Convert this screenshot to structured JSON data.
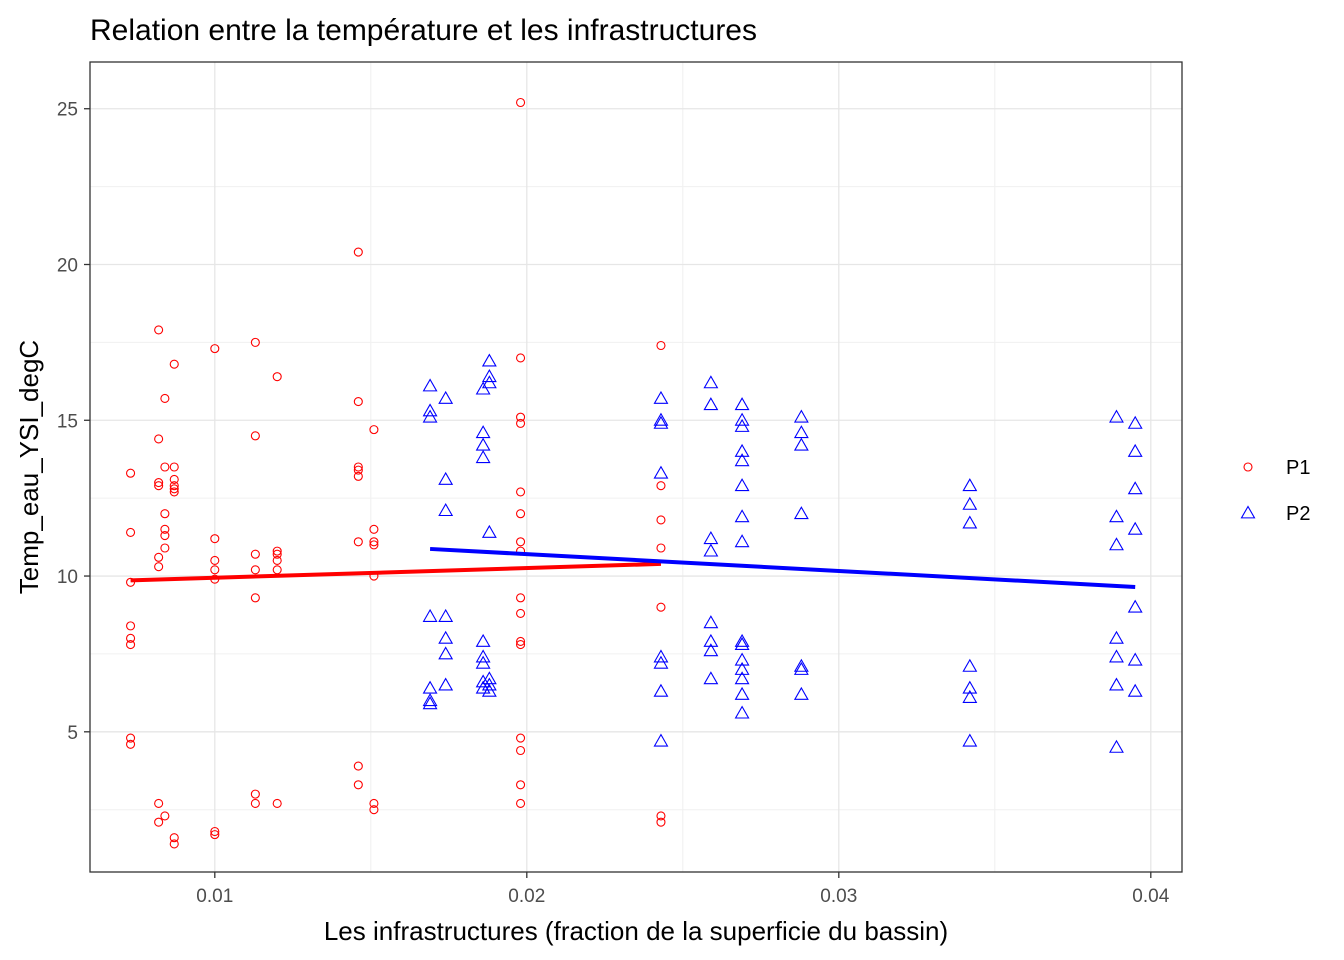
{
  "chart_data": {
    "type": "scatter",
    "title": "Relation entre la température et les infrastructures",
    "xlabel": "Les infrastructures (fraction de la superficie du bassin)",
    "ylabel": "Temp_eau_YSI_degC",
    "xlim": [
      0.006,
      0.041
    ],
    "ylim": [
      0.5,
      26.5
    ],
    "xticks": [
      0.01,
      0.02,
      0.03,
      0.04
    ],
    "xtick_labels": [
      "0.01",
      "0.02",
      "0.03",
      "0.04"
    ],
    "yticks": [
      5,
      10,
      15,
      20,
      25
    ],
    "ytick_labels": [
      "5",
      "10",
      "15",
      "20",
      "25"
    ],
    "grid": true,
    "legend_position": "right",
    "series": [
      {
        "name": "P1",
        "color": "#ff0000",
        "marker": "circle",
        "points": [
          [
            0.0073,
            13.3
          ],
          [
            0.0073,
            11.4
          ],
          [
            0.0073,
            9.8
          ],
          [
            0.0073,
            8.4
          ],
          [
            0.0073,
            8.0
          ],
          [
            0.0073,
            7.8
          ],
          [
            0.0073,
            4.8
          ],
          [
            0.0073,
            4.6
          ],
          [
            0.0082,
            17.9
          ],
          [
            0.0082,
            14.4
          ],
          [
            0.0082,
            13.0
          ],
          [
            0.0082,
            12.9
          ],
          [
            0.0082,
            10.6
          ],
          [
            0.0082,
            10.3
          ],
          [
            0.0082,
            2.7
          ],
          [
            0.0082,
            2.1
          ],
          [
            0.0084,
            15.7
          ],
          [
            0.0084,
            13.5
          ],
          [
            0.0084,
            12.0
          ],
          [
            0.0084,
            11.5
          ],
          [
            0.0084,
            11.3
          ],
          [
            0.0084,
            10.9
          ],
          [
            0.0084,
            2.3
          ],
          [
            0.0087,
            16.8
          ],
          [
            0.0087,
            13.5
          ],
          [
            0.0087,
            13.1
          ],
          [
            0.0087,
            12.9
          ],
          [
            0.0087,
            12.8
          ],
          [
            0.0087,
            12.7
          ],
          [
            0.0087,
            1.6
          ],
          [
            0.0087,
            1.4
          ],
          [
            0.01,
            17.3
          ],
          [
            0.01,
            11.2
          ],
          [
            0.01,
            10.5
          ],
          [
            0.01,
            10.2
          ],
          [
            0.01,
            9.9
          ],
          [
            0.01,
            1.8
          ],
          [
            0.01,
            1.7
          ],
          [
            0.0113,
            17.5
          ],
          [
            0.0113,
            14.5
          ],
          [
            0.0113,
            10.7
          ],
          [
            0.0113,
            10.2
          ],
          [
            0.0113,
            9.3
          ],
          [
            0.0113,
            3.0
          ],
          [
            0.0113,
            2.7
          ],
          [
            0.012,
            16.4
          ],
          [
            0.012,
            10.8
          ],
          [
            0.012,
            10.7
          ],
          [
            0.012,
            10.5
          ],
          [
            0.012,
            10.2
          ],
          [
            0.012,
            2.7
          ],
          [
            0.0146,
            20.4
          ],
          [
            0.0146,
            15.6
          ],
          [
            0.0146,
            13.5
          ],
          [
            0.0146,
            13.4
          ],
          [
            0.0146,
            13.2
          ],
          [
            0.0146,
            11.1
          ],
          [
            0.0146,
            3.9
          ],
          [
            0.0146,
            3.3
          ],
          [
            0.0151,
            14.7
          ],
          [
            0.0151,
            11.5
          ],
          [
            0.0151,
            11.1
          ],
          [
            0.0151,
            11.0
          ],
          [
            0.0151,
            10.0
          ],
          [
            0.0151,
            2.7
          ],
          [
            0.0151,
            2.5
          ],
          [
            0.0198,
            25.2
          ],
          [
            0.0198,
            17.0
          ],
          [
            0.0198,
            15.1
          ],
          [
            0.0198,
            14.9
          ],
          [
            0.0198,
            12.7
          ],
          [
            0.0198,
            12.0
          ],
          [
            0.0198,
            11.1
          ],
          [
            0.0198,
            10.8
          ],
          [
            0.0198,
            9.3
          ],
          [
            0.0198,
            8.8
          ],
          [
            0.0198,
            7.9
          ],
          [
            0.0198,
            7.8
          ],
          [
            0.0198,
            4.8
          ],
          [
            0.0198,
            4.4
          ],
          [
            0.0198,
            3.3
          ],
          [
            0.0198,
            2.7
          ],
          [
            0.0243,
            17.4
          ],
          [
            0.0243,
            12.9
          ],
          [
            0.0243,
            11.8
          ],
          [
            0.0243,
            10.9
          ],
          [
            0.0243,
            9.0
          ],
          [
            0.0243,
            2.3
          ],
          [
            0.0243,
            2.1
          ]
        ],
        "trend": [
          [
            0.0073,
            9.86
          ],
          [
            0.0243,
            10.39
          ]
        ]
      },
      {
        "name": "P2",
        "color": "#0000ff",
        "marker": "triangle",
        "points": [
          [
            0.0169,
            16.1
          ],
          [
            0.0169,
            15.3
          ],
          [
            0.0169,
            15.1
          ],
          [
            0.0169,
            8.7
          ],
          [
            0.0169,
            6.4
          ],
          [
            0.0169,
            6.0
          ],
          [
            0.0169,
            5.9
          ],
          [
            0.0174,
            15.7
          ],
          [
            0.0174,
            13.1
          ],
          [
            0.0174,
            12.1
          ],
          [
            0.0174,
            8.7
          ],
          [
            0.0174,
            8.0
          ],
          [
            0.0174,
            7.5
          ],
          [
            0.0174,
            6.5
          ],
          [
            0.0186,
            16.0
          ],
          [
            0.0186,
            14.6
          ],
          [
            0.0186,
            14.2
          ],
          [
            0.0186,
            13.8
          ],
          [
            0.0186,
            7.9
          ],
          [
            0.0186,
            7.4
          ],
          [
            0.0186,
            7.2
          ],
          [
            0.0186,
            6.6
          ],
          [
            0.0186,
            6.4
          ],
          [
            0.0188,
            16.9
          ],
          [
            0.0188,
            16.4
          ],
          [
            0.0188,
            16.2
          ],
          [
            0.0188,
            11.4
          ],
          [
            0.0188,
            6.7
          ],
          [
            0.0188,
            6.5
          ],
          [
            0.0188,
            6.3
          ],
          [
            0.0243,
            15.7
          ],
          [
            0.0243,
            15.0
          ],
          [
            0.0243,
            14.9
          ],
          [
            0.0243,
            13.3
          ],
          [
            0.0243,
            7.4
          ],
          [
            0.0243,
            7.2
          ],
          [
            0.0243,
            6.3
          ],
          [
            0.0243,
            4.7
          ],
          [
            0.0259,
            16.2
          ],
          [
            0.0259,
            15.5
          ],
          [
            0.0259,
            11.2
          ],
          [
            0.0259,
            10.8
          ],
          [
            0.0259,
            8.5
          ],
          [
            0.0259,
            7.9
          ],
          [
            0.0259,
            7.6
          ],
          [
            0.0259,
            6.7
          ],
          [
            0.0269,
            15.5
          ],
          [
            0.0269,
            15.0
          ],
          [
            0.0269,
            14.8
          ],
          [
            0.0269,
            14.0
          ],
          [
            0.0269,
            13.7
          ],
          [
            0.0269,
            12.9
          ],
          [
            0.0269,
            11.9
          ],
          [
            0.0269,
            11.1
          ],
          [
            0.0269,
            7.9
          ],
          [
            0.0269,
            7.8
          ],
          [
            0.0269,
            7.3
          ],
          [
            0.0269,
            7.0
          ],
          [
            0.0269,
            6.7
          ],
          [
            0.0269,
            6.2
          ],
          [
            0.0269,
            5.6
          ],
          [
            0.0288,
            15.1
          ],
          [
            0.0288,
            14.6
          ],
          [
            0.0288,
            14.2
          ],
          [
            0.0288,
            12.0
          ],
          [
            0.0288,
            7.1
          ],
          [
            0.0288,
            7.0
          ],
          [
            0.0288,
            6.2
          ],
          [
            0.0342,
            12.9
          ],
          [
            0.0342,
            12.3
          ],
          [
            0.0342,
            11.7
          ],
          [
            0.0342,
            7.1
          ],
          [
            0.0342,
            6.4
          ],
          [
            0.0342,
            6.1
          ],
          [
            0.0342,
            4.7
          ],
          [
            0.0389,
            15.1
          ],
          [
            0.0389,
            11.9
          ],
          [
            0.0389,
            11.0
          ],
          [
            0.0389,
            8.0
          ],
          [
            0.0389,
            7.4
          ],
          [
            0.0389,
            6.5
          ],
          [
            0.0389,
            4.5
          ],
          [
            0.0395,
            14.9
          ],
          [
            0.0395,
            14.0
          ],
          [
            0.0395,
            12.8
          ],
          [
            0.0395,
            11.5
          ],
          [
            0.0395,
            9.0
          ],
          [
            0.0395,
            7.3
          ],
          [
            0.0395,
            6.3
          ]
        ],
        "trend": [
          [
            0.0169,
            10.87
          ],
          [
            0.0395,
            9.65
          ]
        ]
      }
    ]
  }
}
